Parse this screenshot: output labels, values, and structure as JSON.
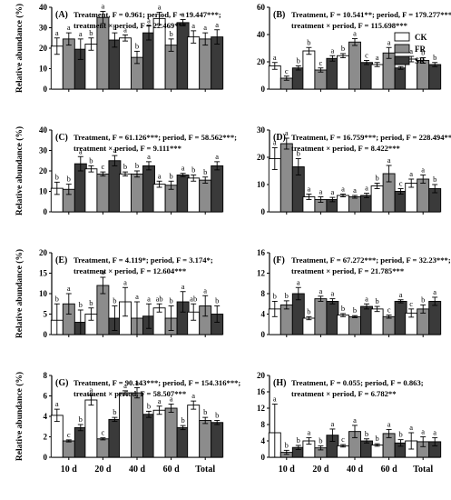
{
  "colors": {
    "CK": "#ffffff",
    "FR": "#8c8c8c",
    "SR": "#3a3a3a"
  },
  "chart_data": [
    {
      "type": "bar",
      "label": "(A)",
      "stats": [
        "Treatment, F = 0.961; period, F = 19.447***;",
        "treatment × period, F = 22.469***"
      ],
      "categories": [
        "10 d",
        "20 d",
        "40 d",
        "60 d",
        "Total"
      ],
      "ylim": [
        0,
        40
      ],
      "yticks": [
        0,
        10,
        20,
        30,
        40
      ],
      "ylabel": "Relative abundance (%)",
      "series": [
        {
          "name": "CK",
          "values": [
            21,
            22,
            25,
            34.5,
            25.5
          ],
          "errors": [
            4,
            3,
            1.5,
            3,
            3
          ],
          "letters": [
            "a",
            "b",
            "a",
            "a",
            "a"
          ]
        },
        {
          "name": "FR",
          "values": [
            24.5,
            35,
            15.5,
            21.5,
            24.5
          ],
          "errors": [
            3,
            3,
            3,
            3,
            3
          ],
          "letters": [
            "a",
            "a",
            "b",
            "b",
            "a"
          ]
        },
        {
          "name": "SR",
          "values": [
            19.5,
            24,
            27.5,
            32.5,
            25.5
          ],
          "errors": [
            5,
            3.5,
            3.5,
            1.5,
            3.5
          ],
          "letters": [
            "a",
            "b",
            "a",
            "a",
            "a"
          ]
        }
      ]
    },
    {
      "type": "bar",
      "label": "(B)",
      "stats": [
        "Treatment, F = 10.541**; period, F = 179.277***;",
        "treatment × period, F = 115.698***"
      ],
      "categories": [
        "10 d",
        "20 d",
        "40 d",
        "60 d",
        "Total"
      ],
      "ylim": [
        0,
        60
      ],
      "yticks": [
        0,
        20,
        40,
        60
      ],
      "ylabel": "",
      "legend": [
        "CK",
        "FR",
        "SR"
      ],
      "series": [
        {
          "name": "CK",
          "values": [
            17,
            28,
            24.5,
            18,
            22
          ],
          "errors": [
            2.5,
            2.5,
            1.5,
            1.5,
            2
          ],
          "letters": [
            "a",
            "b",
            "b",
            "a",
            "a"
          ]
        },
        {
          "name": "FR",
          "values": [
            8,
            14,
            34.5,
            26.5,
            21
          ],
          "errors": [
            1.5,
            1.5,
            2.5,
            4,
            2
          ],
          "letters": [
            "c",
            "c",
            "a",
            "a",
            "b"
          ]
        },
        {
          "name": "SR",
          "values": [
            15.5,
            22.5,
            19.5,
            15.5,
            18
          ],
          "errors": [
            1.5,
            2,
            1.5,
            1,
            1.5
          ],
          "letters": [
            "b",
            "a",
            "c",
            "b",
            "b"
          ]
        }
      ]
    },
    {
      "type": "bar",
      "label": "(C)",
      "stats": [
        "Treatment, F = 61.126***; period, F = 58.562***;",
        "treatment × period, F = 9.111***"
      ],
      "categories": [
        "10 d",
        "20 d",
        "40 d",
        "60 d",
        "Total"
      ],
      "ylim": [
        0,
        40
      ],
      "yticks": [
        0,
        10,
        20,
        30,
        40
      ],
      "ylabel": "Relative abundance (%)",
      "series": [
        {
          "name": "CK",
          "values": [
            11.5,
            21,
            18.5,
            13.5,
            16.5
          ],
          "errors": [
            3,
            1.5,
            1,
            1.5,
            1.5
          ],
          "letters": [
            "b",
            "b",
            "b",
            "a",
            "b"
          ]
        },
        {
          "name": "FR",
          "values": [
            11,
            18.5,
            18.5,
            13,
            15.5
          ],
          "errors": [
            2.5,
            1,
            1.5,
            2,
            1.5
          ],
          "letters": [
            "b",
            "c",
            "b",
            "b",
            "b"
          ]
        },
        {
          "name": "SR",
          "values": [
            23.5,
            25,
            22.5,
            18,
            22.5
          ],
          "errors": [
            3.5,
            2.5,
            2,
            0.8,
            2
          ],
          "letters": [
            "a",
            "a",
            "a",
            "a",
            "a"
          ]
        }
      ]
    },
    {
      "type": "bar",
      "label": "(D)",
      "stats": [
        "Treatment, F = 16.759***; period, F = 228.494***;",
        "treatment × period, F = 8.422***"
      ],
      "categories": [
        "10 d",
        "20 d",
        "40 d",
        "60 d",
        "Total"
      ],
      "ylim": [
        0,
        30
      ],
      "yticks": [
        0,
        10,
        20,
        30
      ],
      "ylabel": "",
      "series": [
        {
          "name": "CK",
          "values": [
            19.5,
            5.5,
            6,
            9.5,
            10.5
          ],
          "errors": [
            4,
            1,
            0.5,
            1,
            1.5
          ],
          "letters": [
            "a",
            "a",
            "a",
            "b",
            "a"
          ]
        },
        {
          "name": "FR",
          "values": [
            25,
            4.5,
            5.5,
            14,
            12
          ],
          "errors": [
            2,
            1,
            0.5,
            3,
            1.5
          ],
          "letters": [
            "a",
            "a",
            "a",
            "a",
            "a"
          ]
        },
        {
          "name": "SR",
          "values": [
            16.5,
            4.5,
            6,
            7.5,
            8.5
          ],
          "errors": [
            3,
            0.8,
            0.8,
            1,
            1.5
          ],
          "letters": [
            "b",
            "a",
            "a",
            "c",
            "b"
          ]
        }
      ]
    },
    {
      "type": "bar",
      "label": "(E)",
      "stats": [
        "Treatment, F = 4.119*; period, F = 3.174*;",
        "treatment × period, F = 12.604***"
      ],
      "categories": [
        "10 d",
        "20 d",
        "40 d",
        "60 d",
        "Total"
      ],
      "ylim": [
        0,
        20
      ],
      "yticks": [
        0,
        5,
        10,
        15,
        20
      ],
      "ylabel": "Relative abundance (%)",
      "series": [
        {
          "name": "CK",
          "values": [
            3.5,
            5,
            8,
            6.5,
            5.5
          ],
          "errors": [
            4,
            1.5,
            3.5,
            1,
            2
          ],
          "letters": [
            "b",
            "b",
            "a",
            "ab",
            "ab"
          ]
        },
        {
          "name": "FR",
          "values": [
            7.5,
            12,
            4,
            4,
            7
          ],
          "errors": [
            2.5,
            2,
            4,
            3,
            2.5
          ],
          "letters": [
            "a",
            "a",
            "a",
            "b",
            "a"
          ]
        },
        {
          "name": "SR",
          "values": [
            3,
            4,
            4.5,
            8,
            5
          ],
          "errors": [
            3,
            3,
            3,
            2.5,
            2
          ],
          "letters": [
            "b",
            "b",
            "a",
            "a",
            "b"
          ]
        }
      ]
    },
    {
      "type": "bar",
      "label": "(F)",
      "stats": [
        "Treatment, F = 67.272***; period, F = 32.23***;",
        "treatment × period, F = 21.785***"
      ],
      "categories": [
        "10 d",
        "20 d",
        "40 d",
        "60 d",
        "Total"
      ],
      "ylim": [
        0,
        16
      ],
      "yticks": [
        0,
        4,
        8,
        12,
        16
      ],
      "ylabel": "",
      "series": [
        {
          "name": "CK",
          "values": [
            5,
            3.2,
            3.8,
            5,
            4.2
          ],
          "errors": [
            1.5,
            0.3,
            0.3,
            0.5,
            0.8
          ],
          "letters": [
            "b",
            "b",
            "b",
            "b",
            "c"
          ]
        },
        {
          "name": "FR",
          "values": [
            5.8,
            7,
            3.5,
            3.5,
            5
          ],
          "errors": [
            0.8,
            0.5,
            0.2,
            0.3,
            0.8
          ],
          "letters": [
            "b",
            "a",
            "b",
            "c",
            "b"
          ]
        },
        {
          "name": "SR",
          "values": [
            8,
            6.5,
            5.5,
            6.5,
            6.5
          ],
          "errors": [
            1.2,
            0.5,
            0.5,
            0.3,
            0.8
          ],
          "letters": [
            "a",
            "a",
            "a",
            "a",
            "a"
          ]
        }
      ]
    },
    {
      "type": "bar",
      "label": "(G)",
      "stats": [
        "Treatment, F = 90.143***; period, F = 154.316***;",
        "treatment × period, F = 58.507***"
      ],
      "categories": [
        "10 d",
        "20 d",
        "40 d",
        "60 d",
        "Total"
      ],
      "ylim": [
        0,
        8
      ],
      "yticks": [
        0,
        2,
        4,
        6,
        8
      ],
      "ylabel": "Relative abundance (%)",
      "series": [
        {
          "name": "CK",
          "values": [
            4.1,
            5.6,
            6.3,
            4.6,
            5.1
          ],
          "errors": [
            0.6,
            0.5,
            0.2,
            0.4,
            0.4
          ],
          "letters": [
            "a",
            "a",
            "a",
            "a",
            "a"
          ]
        },
        {
          "name": "FR",
          "values": [
            1.6,
            1.8,
            6.3,
            4.8,
            3.6
          ],
          "errors": [
            0.1,
            0.1,
            0.5,
            0.4,
            0.3
          ],
          "letters": [
            "c",
            "c",
            "a",
            "a",
            "b"
          ]
        },
        {
          "name": "SR",
          "values": [
            2.9,
            3.7,
            4.2,
            2.9,
            3.4
          ],
          "errors": [
            0.3,
            0.2,
            0.3,
            0.2,
            0.2
          ],
          "letters": [
            "b",
            "b",
            "b",
            "b",
            "b"
          ]
        }
      ]
    },
    {
      "type": "bar",
      "label": "(H)",
      "stats": [
        "Treatment, F = 0.055; period, F = 0.863;",
        "treatment × period, F = 6.782**"
      ],
      "categories": [
        "10 d",
        "20 d",
        "40 d",
        "60 d",
        "Total"
      ],
      "ylim": [
        0,
        20
      ],
      "yticks": [
        0,
        4,
        8,
        12,
        16,
        20
      ],
      "ylabel": "",
      "series": [
        {
          "name": "CK",
          "values": [
            6,
            4,
            2.8,
            3,
            4
          ],
          "errors": [
            7,
            0.8,
            0.3,
            0.3,
            2
          ],
          "letters": [
            "a",
            "a",
            "c",
            "b",
            "a"
          ]
        },
        {
          "name": "FR",
          "values": [
            1.2,
            2.3,
            6.3,
            5.8,
            3.8
          ],
          "errors": [
            0.5,
            0.5,
            1.5,
            1,
            1.2
          ],
          "letters": [
            "b",
            "b",
            "a",
            "a",
            "a"
          ]
        },
        {
          "name": "SR",
          "values": [
            2.4,
            5.4,
            4,
            3.5,
            3.8
          ],
          "errors": [
            0.5,
            1.5,
            0.5,
            0.8,
            1
          ],
          "letters": [
            "b",
            "a",
            "b",
            "b",
            "a"
          ]
        }
      ]
    }
  ]
}
